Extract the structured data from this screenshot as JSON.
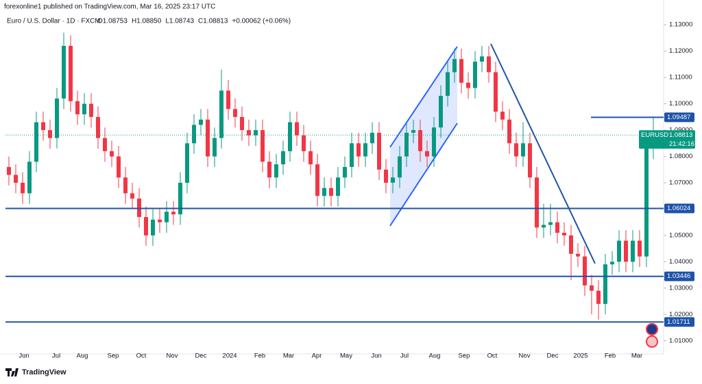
{
  "header": {
    "published": "forexonline1 published on TradingView.com, Mar 16, 2025 23:17 UTC"
  },
  "chart_data": {
    "type": "candlestick",
    "title": "Euro / U.S. Dollar · 1D · FXCM",
    "legend_values": [
      "O1.08753",
      "H1.08850",
      "L1.08743",
      "C1.08813",
      "+0.00062 (+0.06%)"
    ],
    "up_color": "#089981",
    "down_color": "#f23645",
    "level_color": "#1e53a8",
    "grid": false,
    "ohlc": [
      [
        1.076,
        1.08,
        1.069,
        1.073
      ],
      [
        1.073,
        1.077,
        1.066,
        1.07
      ],
      [
        1.07,
        1.074,
        1.062,
        1.066
      ],
      [
        1.066,
        1.082,
        1.062,
        1.078
      ],
      [
        1.078,
        1.097,
        1.074,
        1.093
      ],
      [
        1.093,
        1.097,
        1.086,
        1.09
      ],
      [
        1.09,
        1.094,
        1.083,
        1.087
      ],
      [
        1.087,
        1.106,
        1.083,
        1.102
      ],
      [
        1.102,
        1.127,
        1.098,
        1.122
      ],
      [
        1.122,
        1.126,
        1.097,
        1.101
      ],
      [
        1.101,
        1.105,
        1.092,
        1.096
      ],
      [
        1.096,
        1.104,
        1.092,
        1.1
      ],
      [
        1.1,
        1.104,
        1.091,
        1.095
      ],
      [
        1.095,
        1.099,
        1.083,
        1.087
      ],
      [
        1.087,
        1.091,
        1.078,
        1.082
      ],
      [
        1.082,
        1.086,
        1.076,
        1.08
      ],
      [
        1.08,
        1.084,
        1.068,
        1.072
      ],
      [
        1.072,
        1.076,
        1.062,
        1.066
      ],
      [
        1.066,
        1.07,
        1.06,
        1.064
      ],
      [
        1.064,
        1.068,
        1.053,
        1.057
      ],
      [
        1.057,
        1.061,
        1.046,
        1.05
      ],
      [
        1.05,
        1.06,
        1.046,
        1.056
      ],
      [
        1.056,
        1.06,
        1.051,
        1.055
      ],
      [
        1.055,
        1.063,
        1.051,
        1.059
      ],
      [
        1.059,
        1.063,
        1.054,
        1.058
      ],
      [
        1.058,
        1.074,
        1.054,
        1.07
      ],
      [
        1.07,
        1.089,
        1.066,
        1.085
      ],
      [
        1.085,
        1.096,
        1.081,
        1.092
      ],
      [
        1.092,
        1.098,
        1.088,
        1.094
      ],
      [
        1.094,
        1.098,
        1.076,
        1.08
      ],
      [
        1.08,
        1.091,
        1.076,
        1.087
      ],
      [
        1.087,
        1.113,
        1.083,
        1.105
      ],
      [
        1.105,
        1.109,
        1.094,
        1.098
      ],
      [
        1.098,
        1.102,
        1.091,
        1.095
      ],
      [
        1.095,
        1.099,
        1.086,
        1.09
      ],
      [
        1.09,
        1.094,
        1.084,
        1.088
      ],
      [
        1.088,
        1.094,
        1.084,
        1.09
      ],
      [
        1.09,
        1.094,
        1.074,
        1.078
      ],
      [
        1.078,
        1.082,
        1.068,
        1.072
      ],
      [
        1.072,
        1.081,
        1.068,
        1.077
      ],
      [
        1.077,
        1.086,
        1.073,
        1.082
      ],
      [
        1.082,
        1.097,
        1.078,
        1.093
      ],
      [
        1.093,
        1.097,
        1.084,
        1.088
      ],
      [
        1.088,
        1.092,
        1.078,
        1.082
      ],
      [
        1.082,
        1.086,
        1.073,
        1.077
      ],
      [
        1.077,
        1.081,
        1.061,
        1.065
      ],
      [
        1.065,
        1.072,
        1.061,
        1.068
      ],
      [
        1.068,
        1.072,
        1.061,
        1.065
      ],
      [
        1.065,
        1.076,
        1.061,
        1.072
      ],
      [
        1.072,
        1.08,
        1.068,
        1.076
      ],
      [
        1.076,
        1.089,
        1.072,
        1.085
      ],
      [
        1.085,
        1.089,
        1.076,
        1.08
      ],
      [
        1.08,
        1.089,
        1.076,
        1.085
      ],
      [
        1.085,
        1.093,
        1.081,
        1.089
      ],
      [
        1.089,
        1.093,
        1.071,
        1.075
      ],
      [
        1.075,
        1.079,
        1.066,
        1.07
      ],
      [
        1.07,
        1.076,
        1.066,
        1.072
      ],
      [
        1.072,
        1.084,
        1.068,
        1.08
      ],
      [
        1.08,
        1.093,
        1.076,
        1.089
      ],
      [
        1.089,
        1.094,
        1.085,
        1.09
      ],
      [
        1.09,
        1.094,
        1.078,
        1.082
      ],
      [
        1.082,
        1.086,
        1.076,
        1.08
      ],
      [
        1.08,
        1.095,
        1.076,
        1.091
      ],
      [
        1.091,
        1.107,
        1.087,
        1.103
      ],
      [
        1.103,
        1.116,
        1.099,
        1.112
      ],
      [
        1.112,
        1.121,
        1.108,
        1.117
      ],
      [
        1.117,
        1.121,
        1.104,
        1.108
      ],
      [
        1.108,
        1.112,
        1.102,
        1.106
      ],
      [
        1.106,
        1.12,
        1.102,
        1.116
      ],
      [
        1.116,
        1.122,
        1.112,
        1.118
      ],
      [
        1.118,
        1.122,
        1.108,
        1.112
      ],
      [
        1.112,
        1.116,
        1.093,
        1.097
      ],
      [
        1.097,
        1.101,
        1.09,
        1.094
      ],
      [
        1.094,
        1.098,
        1.081,
        1.085
      ],
      [
        1.085,
        1.089,
        1.076,
        1.08
      ],
      [
        1.08,
        1.093,
        1.076,
        1.085
      ],
      [
        1.085,
        1.089,
        1.068,
        1.072
      ],
      [
        1.072,
        1.076,
        1.049,
        1.053
      ],
      [
        1.053,
        1.062,
        1.049,
        1.054
      ],
      [
        1.054,
        1.062,
        1.05,
        1.055
      ],
      [
        1.055,
        1.059,
        1.047,
        1.051
      ],
      [
        1.051,
        1.055,
        1.046,
        1.05
      ],
      [
        1.05,
        1.054,
        1.033,
        1.043
      ],
      [
        1.043,
        1.047,
        1.038,
        1.042
      ],
      [
        1.042,
        1.046,
        1.027,
        1.031
      ],
      [
        1.031,
        1.035,
        1.02,
        1.029
      ],
      [
        1.029,
        1.033,
        1.018,
        1.024
      ],
      [
        1.024,
        1.043,
        1.02,
        1.039
      ],
      [
        1.039,
        1.044,
        1.035,
        1.04
      ],
      [
        1.04,
        1.052,
        1.036,
        1.048
      ],
      [
        1.048,
        1.052,
        1.036,
        1.04
      ],
      [
        1.04,
        1.052,
        1.036,
        1.048
      ],
      [
        1.048,
        1.052,
        1.038,
        1.042
      ],
      [
        1.042,
        1.087,
        1.038,
        1.083
      ],
      [
        1.083,
        1.095,
        1.079,
        1.088
      ]
    ],
    "xlim": [
      0,
      96
    ],
    "xticks": [
      {
        "value": 2.7,
        "label": "Jun"
      },
      {
        "value": 7.4,
        "label": "Jul"
      },
      {
        "value": 11.2,
        "label": "Aug"
      },
      {
        "value": 15.7,
        "label": "Sep"
      },
      {
        "value": 19.8,
        "label": "Oct"
      },
      {
        "value": 24.3,
        "label": "Nov"
      },
      {
        "value": 28.5,
        "label": "Dec"
      },
      {
        "value": 32.7,
        "label": "2024"
      },
      {
        "value": 37.1,
        "label": "Feb"
      },
      {
        "value": 41.3,
        "label": "Mar"
      },
      {
        "value": 45.4,
        "label": "Apr"
      },
      {
        "value": 49.7,
        "label": "May"
      },
      {
        "value": 54.1,
        "label": "Jun"
      },
      {
        "value": 58.2,
        "label": "Jul"
      },
      {
        "value": 62.6,
        "label": "Aug"
      },
      {
        "value": 66.9,
        "label": "Sep"
      },
      {
        "value": 71,
        "label": "Oct"
      },
      {
        "value": 75.7,
        "label": "Nov"
      },
      {
        "value": 79.8,
        "label": "Dec"
      },
      {
        "value": 83.9,
        "label": "2025"
      },
      {
        "value": 88.2,
        "label": "Feb"
      },
      {
        "value": 92.1,
        "label": "Mar"
      }
    ],
    "ylim": [
      1.005,
      1.135
    ],
    "yticks": [
      {
        "value": 1.13,
        "label": "1.13000"
      },
      {
        "value": 1.12,
        "label": "1.12000"
      },
      {
        "value": 1.11,
        "label": "1.11000"
      },
      {
        "value": 1.1,
        "label": "1.10000"
      },
      {
        "value": 1.09,
        "label": "1.09000"
      },
      {
        "value": 1.08,
        "label": "1.08000"
      },
      {
        "value": 1.07,
        "label": "1.07000"
      },
      {
        "value": 1.06,
        "label": "1.06000"
      },
      {
        "value": 1.05,
        "label": "1.05000"
      },
      {
        "value": 1.04,
        "label": "1.04000"
      },
      {
        "value": 1.03,
        "label": "1.03000"
      },
      {
        "value": 1.02,
        "label": "1.02000"
      },
      {
        "value": 1.01,
        "label": "1.01000"
      }
    ],
    "levels": [
      1.09487,
      1.06024,
      1.03446,
      1.01711
    ],
    "symbol": "EURUSD",
    "last_price": 1.08813,
    "countdown": "21:42:16"
  },
  "footer": {
    "brand": "TradingView"
  }
}
